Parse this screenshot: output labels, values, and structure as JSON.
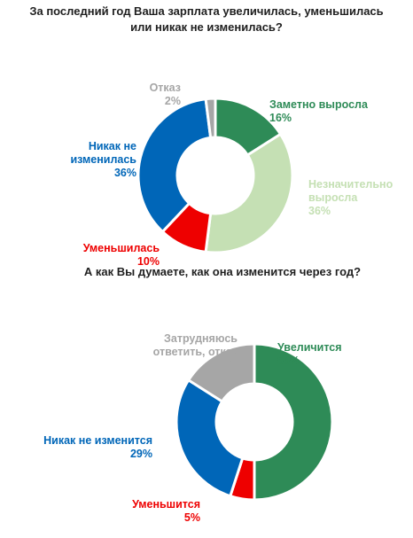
{
  "chart_data": [
    {
      "type": "pie",
      "title": "За последний год Ваша зарплата увеличилась, уменьшилась\nили никак не изменилась?",
      "slices": [
        {
          "label": "Заметно выросла",
          "value": 16,
          "value_label": "16%",
          "color": "#2e8b57"
        },
        {
          "label": "Незначительно\nвыросла",
          "value": 36,
          "value_label": "36%",
          "color": "#c5e0b4"
        },
        {
          "label": "Уменьшилась",
          "value": 10,
          "value_label": "10%",
          "color": "#ee0000"
        },
        {
          "label": "Никак не\nизменилась",
          "value": 36,
          "value_label": "36%",
          "color": "#0066b8"
        },
        {
          "label": "Отказ",
          "value": 2,
          "value_label": "2%",
          "color": "#a6a6a6"
        }
      ]
    },
    {
      "type": "pie",
      "title": "А как Вы думаете, как она изменится через год?",
      "slices": [
        {
          "label": "Увеличится",
          "value": 50,
          "value_label": "50%",
          "color": "#2e8b57"
        },
        {
          "label": "Уменьшится",
          "value": 5,
          "value_label": "5%",
          "color": "#ee0000"
        },
        {
          "label": "Никак не изменится",
          "value": 29,
          "value_label": "29%",
          "color": "#0066b8"
        },
        {
          "label": "Затрудняюсь\nответить, отказ",
          "value": 16,
          "value_label": "16%",
          "color": "#a6a6a6"
        }
      ]
    }
  ]
}
